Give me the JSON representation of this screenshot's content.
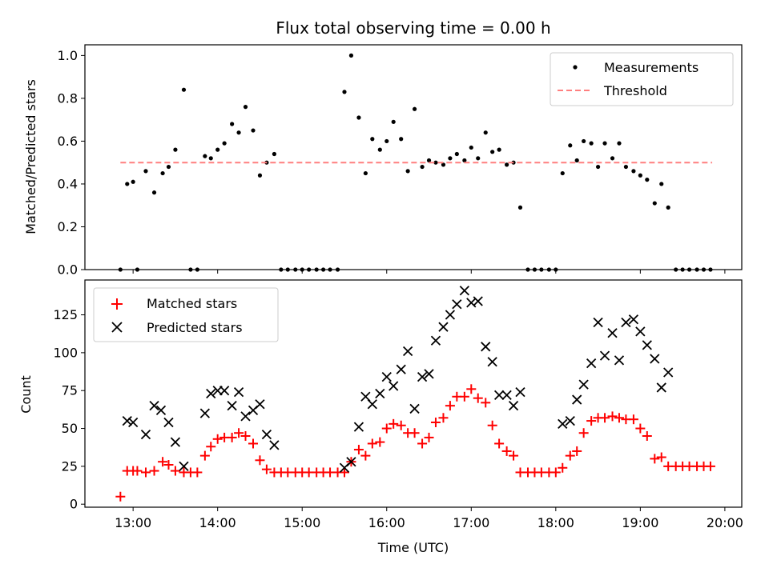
{
  "figure": {
    "title": "Flux total observing time = 0.00 h"
  },
  "chart_data": [
    {
      "type": "scatter",
      "ylabel": "Matched/Predicted stars",
      "xlim": [
        12.43,
        20.2
      ],
      "ylim": [
        0,
        1.05
      ],
      "ytick_values": [
        0,
        0.2,
        0.4,
        0.6,
        0.8,
        1.0
      ],
      "ytick_labels": [
        "0.0",
        "0.2",
        "0.4",
        "0.6",
        "0.8",
        "1.0"
      ],
      "xtick_values": [
        13,
        14,
        15,
        16,
        17,
        18,
        19,
        20
      ],
      "legend": {
        "position": "upper right",
        "entries": [
          "Measurements",
          "Threshold"
        ]
      },
      "series": [
        {
          "name": "Measurements",
          "marker": "dot",
          "color": "#000000",
          "x": [
            12.85,
            12.93,
            13.0,
            13.05,
            13.15,
            13.25,
            13.35,
            13.42,
            13.5,
            13.6,
            13.68,
            13.76,
            13.85,
            13.92,
            14.0,
            14.08,
            14.17,
            14.25,
            14.33,
            14.42,
            14.5,
            14.58,
            14.67,
            14.75,
            14.83,
            14.92,
            15.0,
            15.08,
            15.17,
            15.25,
            15.33,
            15.42,
            15.5,
            15.58,
            15.67,
            15.75,
            15.83,
            15.92,
            16.0,
            16.08,
            16.17,
            16.25,
            16.33,
            16.42,
            16.5,
            16.58,
            16.67,
            16.75,
            16.83,
            16.92,
            17.0,
            17.08,
            17.17,
            17.25,
            17.33,
            17.42,
            17.5,
            17.58,
            17.67,
            17.75,
            17.83,
            17.92,
            18.0,
            18.08,
            18.17,
            18.25,
            18.33,
            18.42,
            18.5,
            18.58,
            18.67,
            18.75,
            18.83,
            18.92,
            19.0,
            19.08,
            19.17,
            19.25,
            19.33,
            19.42,
            19.5,
            19.58,
            19.67,
            19.75,
            19.83
          ],
          "y": [
            0.0,
            0.4,
            0.41,
            0.0,
            0.46,
            0.36,
            0.45,
            0.48,
            0.56,
            0.84,
            0.0,
            0.0,
            0.53,
            0.52,
            0.56,
            0.59,
            0.68,
            0.64,
            0.76,
            0.65,
            0.44,
            0.5,
            0.54,
            0.0,
            0.0,
            0.0,
            0.0,
            0.0,
            0.0,
            0.0,
            0.0,
            0.0,
            0.83,
            1.0,
            0.71,
            0.45,
            0.61,
            0.56,
            0.6,
            0.69,
            0.61,
            0.46,
            0.75,
            0.48,
            0.51,
            0.5,
            0.49,
            0.52,
            0.54,
            0.51,
            0.57,
            0.52,
            0.64,
            0.55,
            0.56,
            0.49,
            0.5,
            0.29,
            0.0,
            0.0,
            0.0,
            0.0,
            0.0,
            0.45,
            0.58,
            0.51,
            0.6,
            0.59,
            0.48,
            0.59,
            0.52,
            0.59,
            0.48,
            0.46,
            0.44,
            0.42,
            0.31,
            0.4,
            0.29,
            0.0,
            0.0,
            0.0,
            0.0,
            0.0,
            0.0
          ]
        },
        {
          "name": "Threshold",
          "style": "dashed",
          "color": "#ff7f7f",
          "x": [
            12.85,
            19.85
          ],
          "y": [
            0.5,
            0.5
          ]
        }
      ]
    },
    {
      "type": "scatter",
      "xlabel": "Time (UTC)",
      "ylabel": "Count",
      "xlim": [
        12.43,
        20.2
      ],
      "ylim": [
        -2,
        148
      ],
      "ytick_values": [
        0,
        25,
        50,
        75,
        100,
        125
      ],
      "ytick_labels": [
        "0",
        "25",
        "50",
        "75",
        "100",
        "125"
      ],
      "xtick_values": [
        13,
        14,
        15,
        16,
        17,
        18,
        19,
        20
      ],
      "xtick_labels": [
        "13:00",
        "14:00",
        "15:00",
        "16:00",
        "17:00",
        "18:00",
        "19:00",
        "20:00"
      ],
      "legend": {
        "position": "upper left",
        "entries": [
          "Matched stars",
          "Predicted stars"
        ]
      },
      "series": [
        {
          "name": "Matched stars",
          "marker": "plus",
          "color": "#ff0000",
          "x": [
            12.85,
            12.93,
            13.0,
            13.05,
            13.15,
            13.25,
            13.35,
            13.42,
            13.5,
            13.6,
            13.68,
            13.76,
            13.85,
            13.92,
            14.0,
            14.08,
            14.17,
            14.25,
            14.33,
            14.42,
            14.5,
            14.58,
            14.67,
            14.75,
            14.83,
            14.92,
            15.0,
            15.08,
            15.17,
            15.25,
            15.33,
            15.42,
            15.5,
            15.58,
            15.67,
            15.75,
            15.83,
            15.92,
            16.0,
            16.08,
            16.17,
            16.25,
            16.33,
            16.42,
            16.5,
            16.58,
            16.67,
            16.75,
            16.83,
            16.92,
            17.0,
            17.08,
            17.17,
            17.25,
            17.33,
            17.42,
            17.5,
            17.58,
            17.67,
            17.75,
            17.83,
            17.92,
            18.0,
            18.08,
            18.17,
            18.25,
            18.33,
            18.42,
            18.5,
            18.58,
            18.67,
            18.75,
            18.83,
            18.92,
            19.0,
            19.08,
            19.17,
            19.25,
            19.33,
            19.42,
            19.5,
            19.58,
            19.67,
            19.75,
            19.83
          ],
          "y": [
            5,
            22,
            22,
            22,
            21,
            22,
            28,
            26,
            22,
            21,
            21,
            21,
            32,
            38,
            43,
            44,
            44,
            47,
            45,
            40,
            29,
            23,
            21,
            21,
            21,
            21,
            21,
            21,
            21,
            21,
            21,
            21,
            21,
            28,
            36,
            32,
            40,
            41,
            50,
            53,
            52,
            47,
            47,
            40,
            44,
            54,
            57,
            65,
            71,
            71,
            76,
            70,
            67,
            52,
            40,
            35,
            32,
            21,
            21,
            21,
            21,
            21,
            21,
            24,
            32,
            35,
            47,
            55,
            57,
            57,
            58,
            57,
            56,
            56,
            50,
            45,
            30,
            31,
            25,
            25,
            25,
            25,
            25,
            25,
            25
          ]
        },
        {
          "name": "Predicted stars",
          "marker": "x",
          "color": "#000000",
          "x": [
            12.93,
            13.0,
            13.15,
            13.25,
            13.33,
            13.42,
            13.5,
            13.6,
            13.85,
            13.92,
            14.0,
            14.08,
            14.17,
            14.25,
            14.33,
            14.42,
            14.5,
            14.58,
            14.67,
            15.5,
            15.58,
            15.67,
            15.75,
            15.83,
            15.92,
            16.0,
            16.08,
            16.17,
            16.25,
            16.33,
            16.42,
            16.5,
            16.58,
            16.67,
            16.75,
            16.83,
            16.92,
            17.0,
            17.08,
            17.17,
            17.25,
            17.33,
            17.42,
            17.5,
            17.58,
            18.08,
            18.17,
            18.25,
            18.33,
            18.42,
            18.5,
            18.58,
            18.67,
            18.75,
            18.83,
            18.92,
            19.0,
            19.08,
            19.17,
            19.25,
            19.33
          ],
          "y": [
            55,
            54,
            46,
            65,
            62,
            54,
            41,
            25,
            60,
            73,
            75,
            75,
            65,
            74,
            58,
            62,
            66,
            46,
            39,
            24,
            28,
            51,
            71,
            66,
            73,
            84,
            78,
            89,
            101,
            63,
            84,
            86,
            108,
            117,
            125,
            132,
            141,
            133,
            134,
            104,
            94,
            72,
            72,
            65,
            74,
            53,
            55,
            69,
            79,
            93,
            120,
            98,
            113,
            95,
            120,
            122,
            114,
            105,
            96,
            77,
            87
          ]
        }
      ]
    }
  ]
}
